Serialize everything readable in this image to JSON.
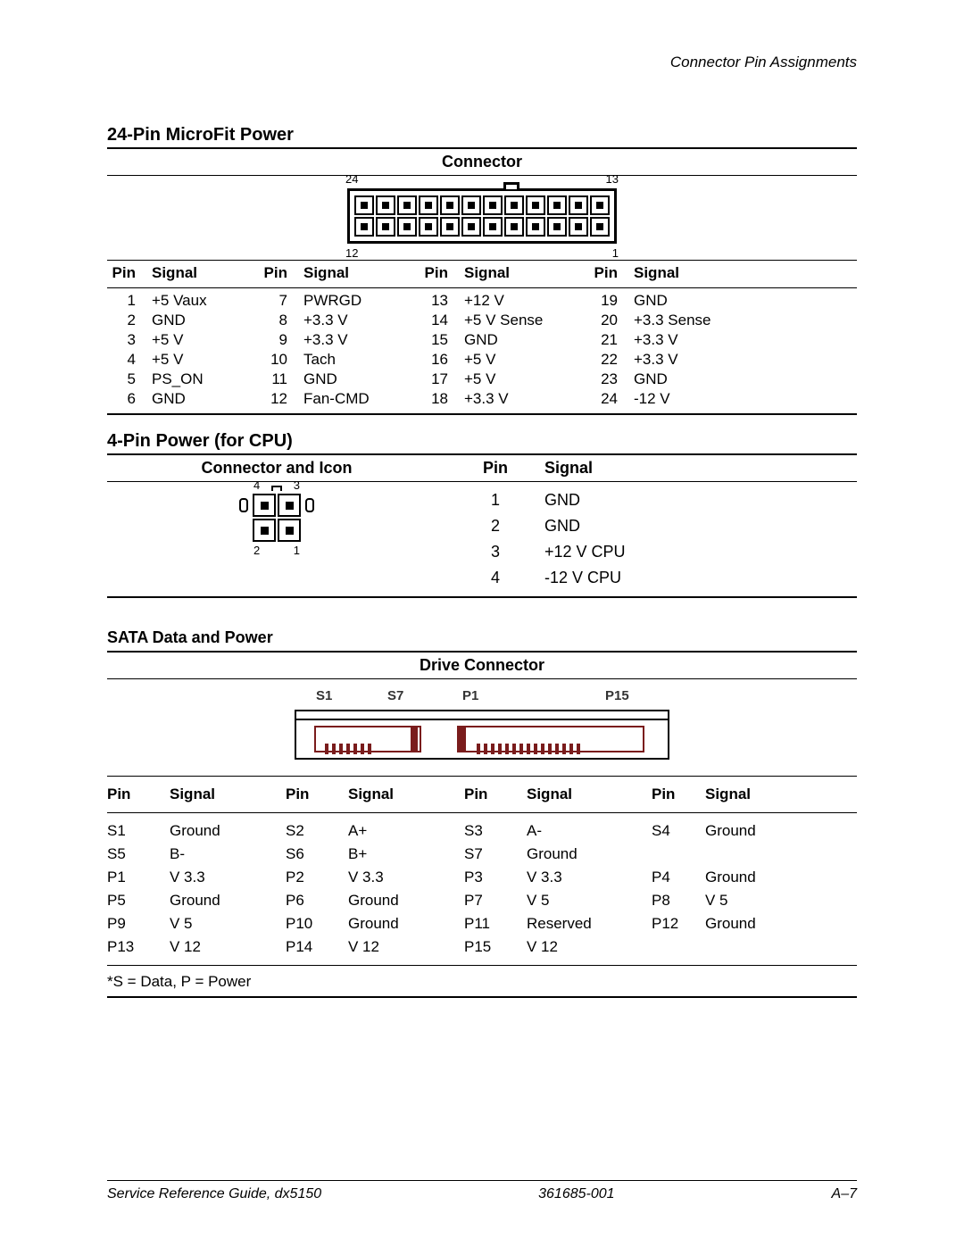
{
  "page": {
    "header_right": "Connector Pin Assignments",
    "footer_left": "Service Reference Guide, dx5150",
    "footer_center": "361685-001",
    "footer_right": "A–7"
  },
  "microfit": {
    "title": "24-Pin MicroFit Power",
    "subtitle": "Connector",
    "labels": {
      "top_left": "24",
      "top_right": "13",
      "bot_left": "12",
      "bot_right": "1"
    },
    "columns": [
      "Pin",
      "Signal",
      "Pin",
      "Signal",
      "Pin",
      "Signal",
      "Pin",
      "Signal"
    ],
    "rows": [
      [
        "1",
        "+5 Vaux",
        "7",
        "PWRGD",
        "13",
        "+12 V",
        "19",
        "GND"
      ],
      [
        "2",
        "GND",
        "8",
        "+3.3 V",
        "14",
        "+5 V Sense",
        "20",
        "+3.3 Sense"
      ],
      [
        "3",
        "+5 V",
        "9",
        "+3.3 V",
        "15",
        "GND",
        "21",
        "+3.3 V"
      ],
      [
        "4",
        "+5 V",
        "10",
        "Tach",
        "16",
        "+5 V",
        "22",
        "+3.3 V"
      ],
      [
        "5",
        "PS_ON",
        "11",
        "GND",
        "17",
        "+5 V",
        "23",
        "GND"
      ],
      [
        "6",
        "GND",
        "12",
        "Fan-CMD",
        "18",
        "+3.3 V",
        "24",
        "-12 V"
      ]
    ]
  },
  "cpu": {
    "title": "4-Pin Power (for CPU)",
    "col_left": "Connector and Icon",
    "col_pin": "Pin",
    "col_sig": "Signal",
    "labels": {
      "tl": "4",
      "tr": "3",
      "bl": "2",
      "br": "1"
    },
    "rows": [
      [
        "1",
        "GND"
      ],
      [
        "2",
        "GND"
      ],
      [
        "3",
        "+12 V CPU"
      ],
      [
        "4",
        "-12 V CPU"
      ]
    ]
  },
  "sata": {
    "title": "SATA Data and Power",
    "subtitle": "Drive Connector",
    "labels": {
      "s1": "S1",
      "s7": "S7",
      "p1": "P1",
      "p15": "P15"
    },
    "columns": [
      "Pin",
      "Signal",
      "Pin",
      "Signal",
      "Pin",
      "Signal",
      "Pin",
      "Signal"
    ],
    "rows": [
      [
        "S1",
        "Ground",
        "S2",
        "A+",
        "S3",
        "A-",
        "S4",
        "Ground"
      ],
      [
        "S5",
        "B-",
        "S6",
        "B+",
        "S7",
        "Ground",
        "",
        ""
      ],
      [
        "P1",
        "V 3.3",
        "P2",
        "V 3.3",
        "P3",
        "V 3.3",
        "P4",
        "Ground"
      ],
      [
        "P5",
        "Ground",
        "P6",
        "Ground",
        "P7",
        "V 5",
        "P8",
        "V 5"
      ],
      [
        "P9",
        "V 5",
        "P10",
        "Ground",
        "P11",
        "Reserved",
        "P12",
        "Ground"
      ],
      [
        "P13",
        "V 12",
        "P14",
        "V 12",
        "P15",
        "V 12",
        "",
        ""
      ]
    ],
    "footnote": "*S = Data, P = Power"
  }
}
